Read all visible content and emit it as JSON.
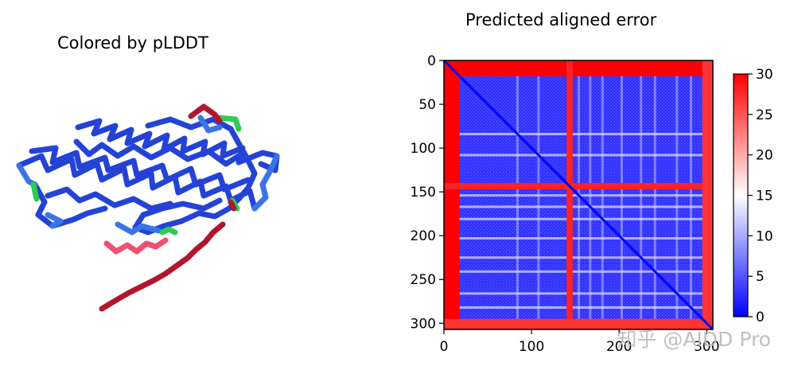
{
  "left_panel": {
    "title": "Colored by pLDDT",
    "legend_colors": {
      "very_high": "#2443d6",
      "confident": "#3a74e6",
      "low": "#2ecc52",
      "very_low": "#b0172c",
      "disordered_pink": "#f05070"
    }
  },
  "watermark": "知乎 @AIDD Pro",
  "chart_data": [
    {
      "type": "heatmap",
      "title": "Predicted aligned error",
      "xlabel": "",
      "ylabel": "",
      "xlim": [
        0,
        307
      ],
      "ylim": [
        307,
        0
      ],
      "x_ticks": [
        0,
        100,
        200,
        300
      ],
      "y_ticks": [
        0,
        50,
        100,
        150,
        200,
        250,
        300
      ],
      "x_tick_labels": [
        "0",
        "100",
        "200",
        "300"
      ],
      "y_tick_labels": [
        "0",
        "50",
        "100",
        "150",
        "200",
        "250",
        "300"
      ],
      "colormap": "bwr",
      "colorbar": {
        "min": 0,
        "max": 30,
        "ticks": [
          0,
          5,
          10,
          15,
          20,
          25,
          30
        ],
        "tick_labels": [
          "0",
          "5",
          "10",
          "15",
          "20",
          "25",
          "30"
        ]
      },
      "high_error_regions": [
        {
          "axis": "rows",
          "range": [
            0,
            18
          ],
          "value": 30
        },
        {
          "axis": "cols",
          "range": [
            0,
            18
          ],
          "value": 30
        },
        {
          "axis": "rows",
          "range": [
            140,
            147
          ],
          "value": 28
        },
        {
          "axis": "cols",
          "range": [
            140,
            147
          ],
          "value": 28
        },
        {
          "axis": "rows",
          "range": [
            295,
            307
          ],
          "value": 27
        },
        {
          "axis": "cols",
          "range": [
            295,
            307
          ],
          "value": 27
        }
      ],
      "light_bands": [
        84,
        108,
        154,
        167,
        181,
        203,
        225,
        241,
        266,
        282
      ],
      "diagonal_value": 0,
      "body_value": 3
    }
  ]
}
